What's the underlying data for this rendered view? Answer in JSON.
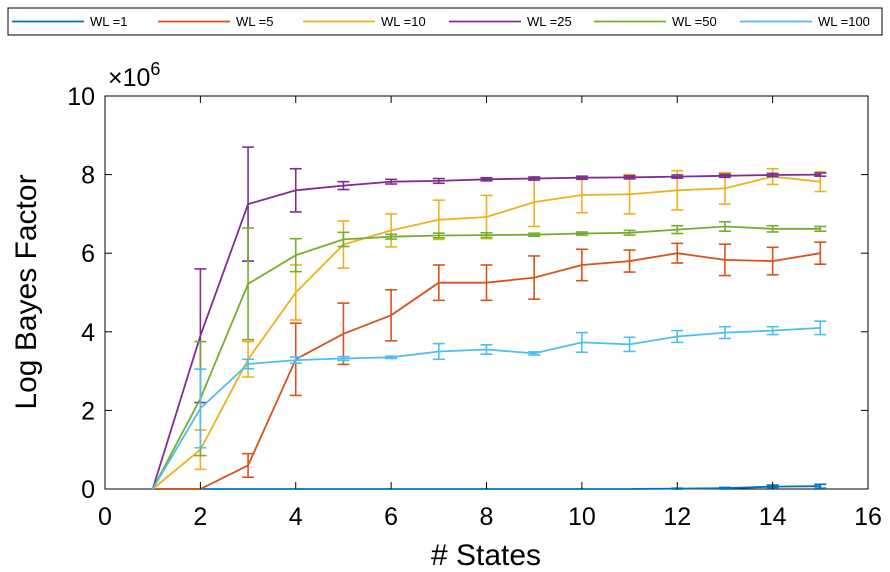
{
  "chart_data": {
    "type": "line",
    "title": "",
    "xlabel": "# States",
    "ylabel": "Log Bayes Factor",
    "scale_multiplier": "×10",
    "scale_exponent": "6",
    "xlim": [
      0,
      16
    ],
    "ylim": [
      0,
      10
    ],
    "x_ticks": [
      0,
      2,
      4,
      6,
      8,
      10,
      12,
      14,
      16
    ],
    "y_ticks": [
      0,
      2,
      4,
      6,
      8,
      10
    ],
    "grid": false,
    "legend_position": "top",
    "x": [
      1,
      2,
      3,
      4,
      5,
      6,
      7,
      8,
      9,
      10,
      11,
      12,
      13,
      14,
      15
    ],
    "series": [
      {
        "name": "WL =1",
        "color": "#0072BD",
        "values": [
          0,
          0,
          0,
          0,
          0,
          0,
          0,
          0,
          0,
          0,
          0,
          0.01,
          0.02,
          0.06,
          0.07
        ],
        "errors": [
          0,
          0,
          0,
          0,
          0,
          0,
          0,
          0,
          0,
          0,
          0,
          0.01,
          0.02,
          0.04,
          0.05
        ]
      },
      {
        "name": "WL =5",
        "color": "#D95319",
        "values": [
          0,
          0,
          0.6,
          3.3,
          3.95,
          4.42,
          5.25,
          5.25,
          5.38,
          5.7,
          5.8,
          6.0,
          5.83,
          5.8,
          6.0
        ],
        "errors": [
          0,
          0,
          0.3,
          0.92,
          0.78,
          0.65,
          0.45,
          0.45,
          0.55,
          0.4,
          0.28,
          0.25,
          0.4,
          0.35,
          0.28
        ]
      },
      {
        "name": "WL =10",
        "color": "#EDB120",
        "values": [
          0,
          1.0,
          3.3,
          5.0,
          6.22,
          6.58,
          6.85,
          6.92,
          7.3,
          7.48,
          7.5,
          7.6,
          7.65,
          7.95,
          7.82
        ],
        "errors": [
          0,
          0.5,
          0.45,
          0.7,
          0.6,
          0.42,
          0.5,
          0.55,
          0.62,
          0.45,
          0.5,
          0.5,
          0.4,
          0.2,
          0.25
        ]
      },
      {
        "name": "WL =25",
        "color": "#7E2F8E",
        "values": [
          0,
          3.9,
          7.25,
          7.6,
          7.72,
          7.82,
          7.84,
          7.88,
          7.9,
          7.92,
          7.93,
          7.95,
          7.97,
          7.99,
          8.0
        ],
        "errors": [
          0,
          1.7,
          1.45,
          0.55,
          0.1,
          0.06,
          0.06,
          0.04,
          0.04,
          0.04,
          0.04,
          0.04,
          0.04,
          0.04,
          0.04
        ]
      },
      {
        "name": "WL =50",
        "color": "#77AC30",
        "values": [
          0,
          2.3,
          5.22,
          5.95,
          6.35,
          6.42,
          6.45,
          6.46,
          6.47,
          6.5,
          6.52,
          6.6,
          6.68,
          6.62,
          6.62
        ],
        "errors": [
          0,
          1.45,
          1.42,
          0.42,
          0.18,
          0.06,
          0.06,
          0.06,
          0.04,
          0.04,
          0.06,
          0.1,
          0.12,
          0.08,
          0.06
        ]
      },
      {
        "name": "WL =100",
        "color": "#4DBEEE",
        "values": [
          0,
          2.05,
          3.18,
          3.28,
          3.32,
          3.35,
          3.5,
          3.55,
          3.45,
          3.73,
          3.68,
          3.88,
          3.98,
          4.03,
          4.1
        ],
        "errors": [
          0,
          1.0,
          0.12,
          0.08,
          0.05,
          0.03,
          0.2,
          0.12,
          0.04,
          0.25,
          0.18,
          0.15,
          0.15,
          0.1,
          0.17
        ]
      }
    ]
  }
}
